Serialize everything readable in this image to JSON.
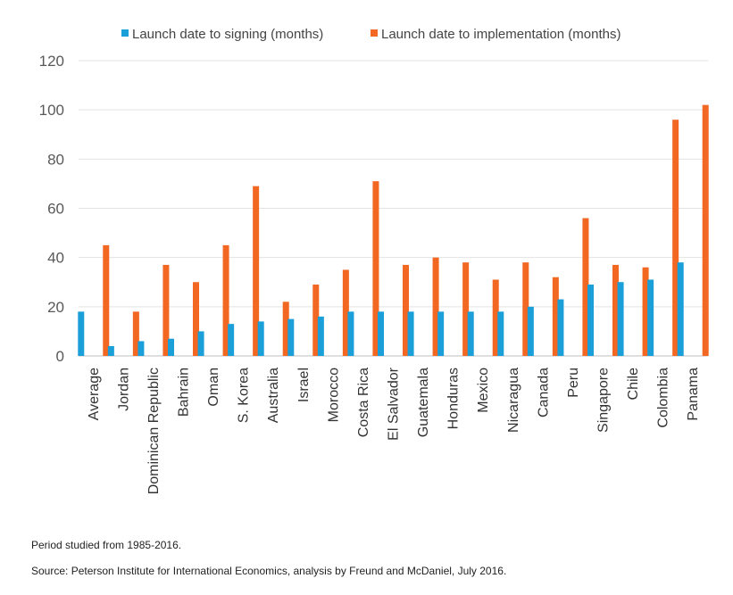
{
  "chart_data": {
    "type": "bar",
    "title": "",
    "xlabel": "",
    "ylabel": "",
    "ylim": [
      0,
      120
    ],
    "yticks": [
      0,
      20,
      40,
      60,
      80,
      100,
      120
    ],
    "gridlines": true,
    "legend_position": "top",
    "categories": [
      "Average",
      "Jordan",
      "Dominican Republic",
      "Bahrain",
      "Oman",
      "S. Korea",
      "Australia",
      "Israel",
      "Morocco",
      "Costa Rica",
      "El Salvador",
      "Guatemala",
      "Honduras",
      "Mexico",
      "Nicaragua",
      "Canada",
      "Peru",
      "Singapore",
      "Chile",
      "Colombia",
      "Panama"
    ],
    "series": [
      {
        "name": "Launch date to signing (months)",
        "color": "#1b9fd8",
        "values": [
          18,
          4,
          6,
          7,
          10,
          13,
          14,
          15,
          16,
          18,
          18,
          18,
          18,
          18,
          18,
          20,
          23,
          29,
          30,
          31,
          38
        ]
      },
      {
        "name": "Launch date to implementation (months)",
        "color": "#f26722",
        "values": [
          45,
          18,
          37,
          30,
          45,
          69,
          22,
          29,
          35,
          71,
          37,
          40,
          38,
          31,
          38,
          32,
          56,
          37,
          36,
          96,
          102
        ]
      }
    ]
  },
  "notes": {
    "period": "Period studied from 1985-2016.",
    "source": "Source: Peterson Institute for International Economics, analysis by Freund and McDaniel, July 2016."
  }
}
